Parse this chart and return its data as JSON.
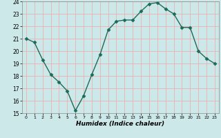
{
  "x": [
    0,
    1,
    2,
    3,
    4,
    5,
    6,
    7,
    8,
    9,
    10,
    11,
    12,
    13,
    14,
    15,
    16,
    17,
    18,
    19,
    20,
    21,
    22,
    23
  ],
  "y": [
    21.0,
    20.7,
    19.3,
    18.1,
    17.5,
    16.8,
    15.2,
    16.4,
    18.1,
    19.7,
    21.7,
    22.4,
    22.5,
    22.5,
    23.2,
    23.8,
    23.9,
    23.4,
    23.0,
    21.9,
    21.9,
    20.0,
    19.4,
    19.0
  ],
  "line_color": "#1a6b5a",
  "marker": "D",
  "marker_size": 2.5,
  "bg_color": "#cce8e8",
  "grid_color": "#e8b0b0",
  "xlabel": "Humidex (Indice chaleur)",
  "xlim": [
    -0.5,
    23.5
  ],
  "ylim": [
    15,
    24
  ],
  "yticks": [
    15,
    16,
    17,
    18,
    19,
    20,
    21,
    22,
    23,
    24
  ],
  "xticks": [
    0,
    1,
    2,
    3,
    4,
    5,
    6,
    7,
    8,
    9,
    10,
    11,
    12,
    13,
    14,
    15,
    16,
    17,
    18,
    19,
    20,
    21,
    22,
    23
  ]
}
